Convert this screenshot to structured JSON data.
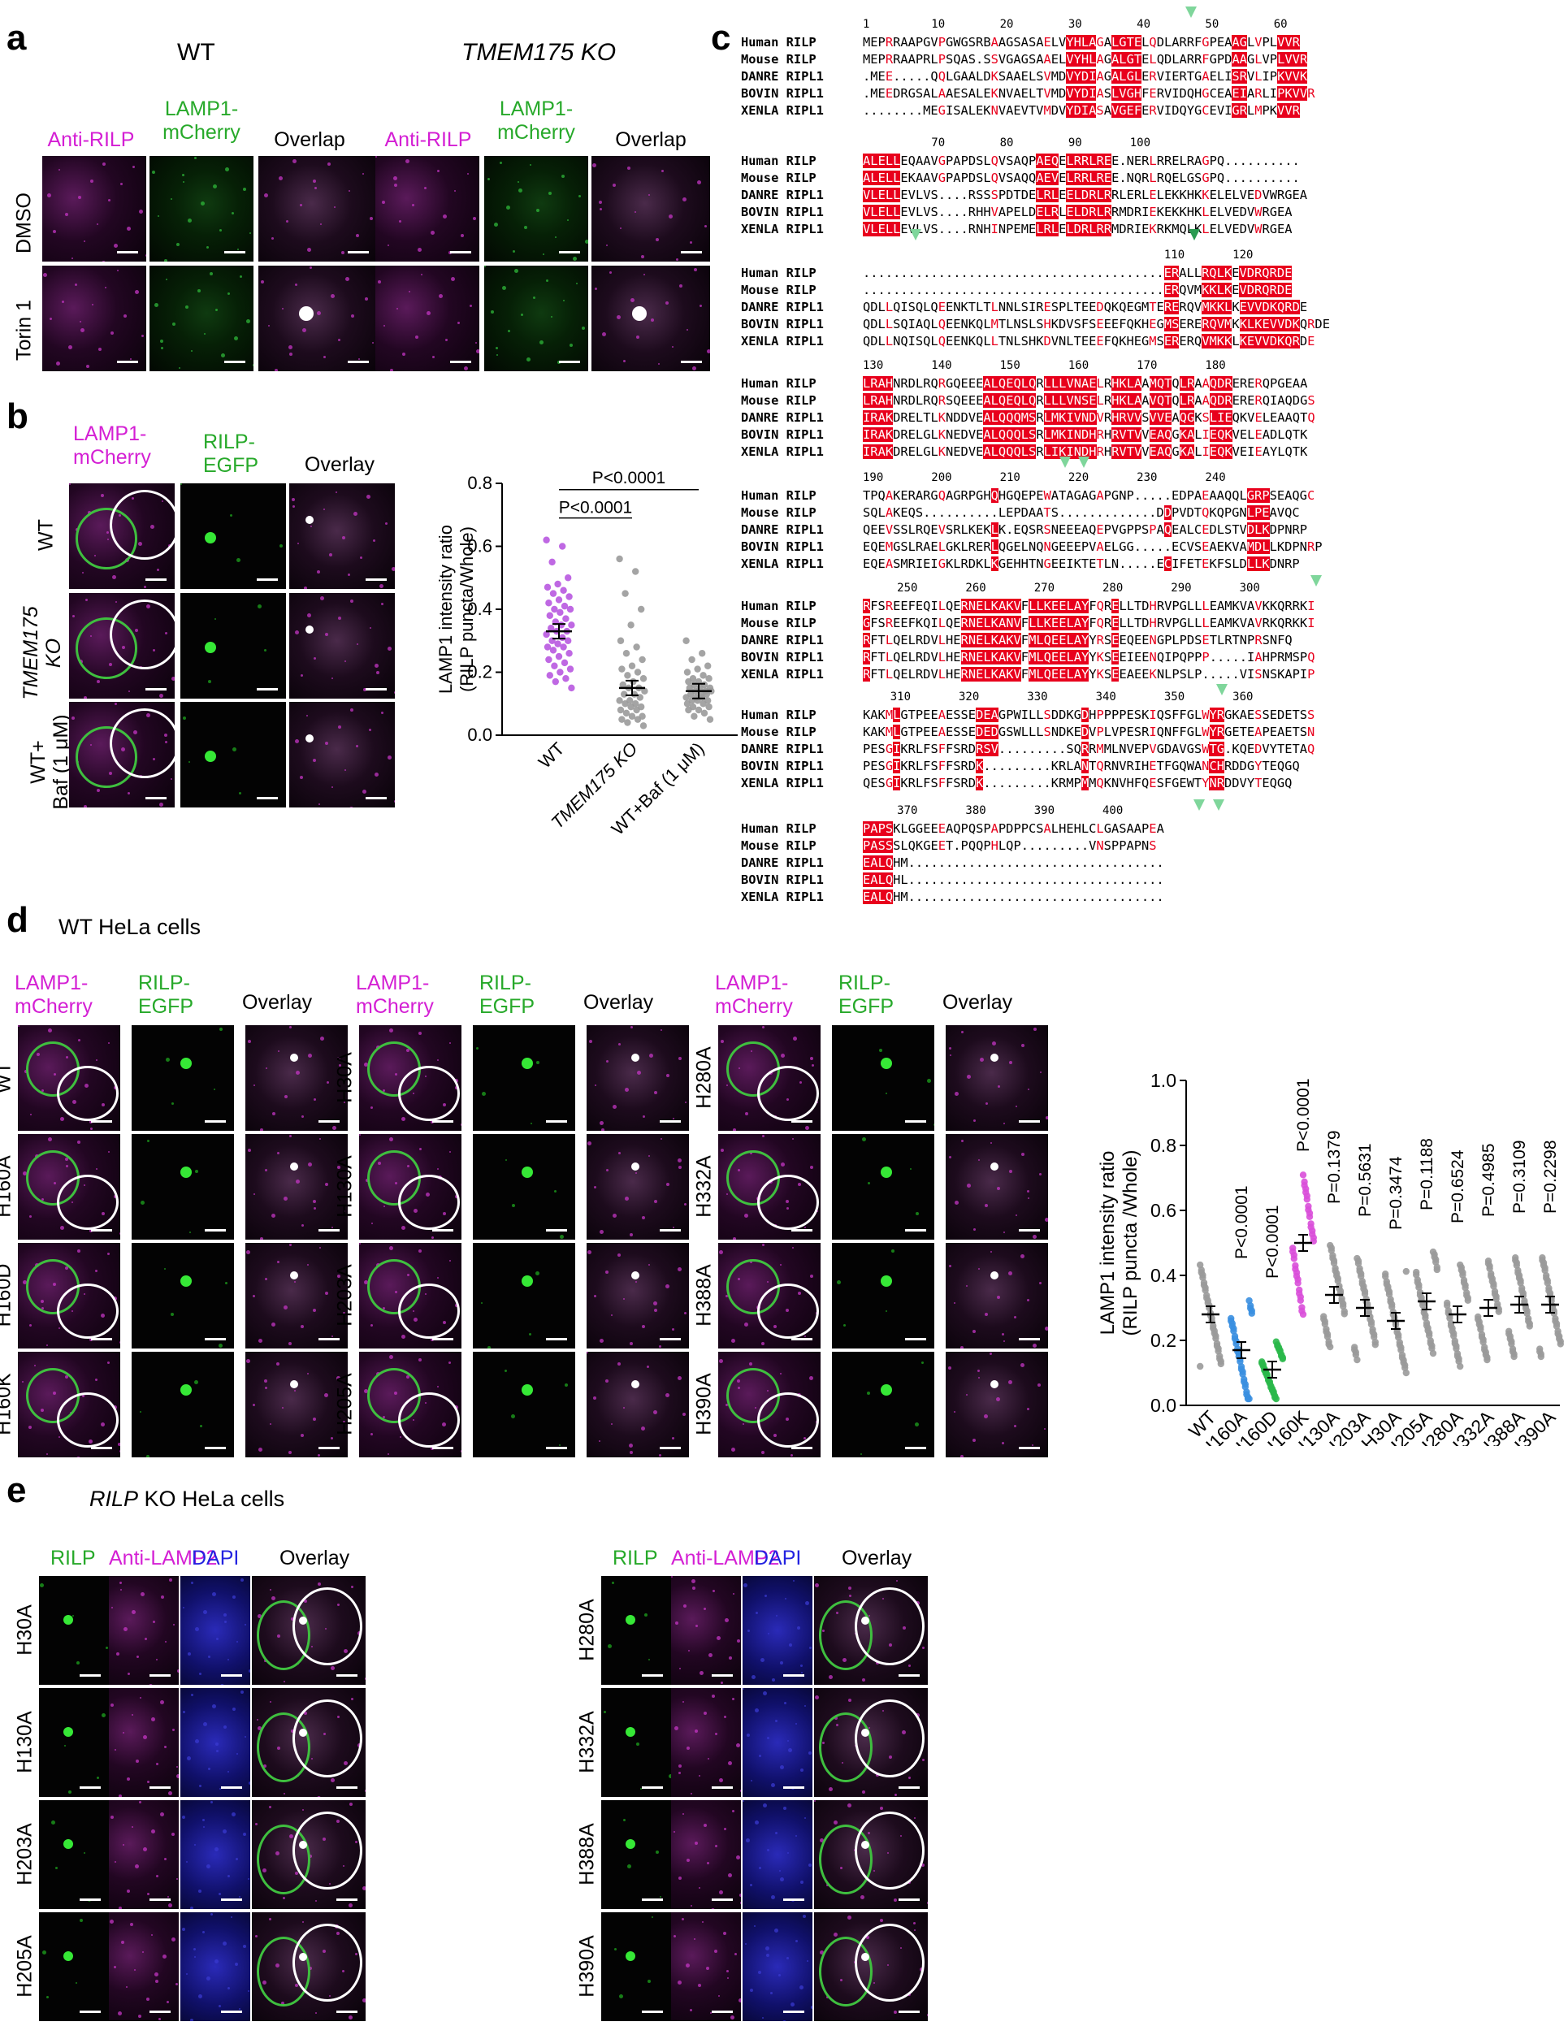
{
  "panel_a": {
    "label": "a",
    "groups": [
      "WT",
      "TMEM175 KO"
    ],
    "columns": [
      "Anti-RILP",
      "LAMP1-\nmCherry",
      "Overlap"
    ],
    "rows": [
      "DMSO",
      "Torin 1"
    ]
  },
  "panel_b": {
    "label": "b",
    "columns": [
      "LAMP1-\nmCherry",
      "RILP-\nEGFP",
      "Overlay"
    ],
    "rows": [
      "WT",
      "TMEM175\nKO",
      "WT+\nBaf (1 μM)"
    ],
    "chart_data": {
      "type": "scatter",
      "ylabel": "LAMP1  intensity ratio\n(RILP puncta/Whole)",
      "categories": [
        "WT",
        "TMEM175 KO",
        "WT+Baf (1 μM)"
      ],
      "ylim": [
        0.0,
        0.8
      ],
      "yticks": [
        "0.0",
        "0.2",
        "0.4",
        "0.6",
        "0.8"
      ],
      "means": [
        0.33,
        0.15,
        0.14
      ],
      "colors": [
        "#b858e0",
        "#9a9a9a",
        "#9a9a9a"
      ],
      "annotations": [
        "P<0.0001",
        "P<0.0001"
      ],
      "series": [
        {
          "values": [
            0.62,
            0.6,
            0.55,
            0.5,
            0.48,
            0.47,
            0.46,
            0.45,
            0.44,
            0.43,
            0.42,
            0.41,
            0.4,
            0.4,
            0.39,
            0.38,
            0.37,
            0.36,
            0.35,
            0.35,
            0.34,
            0.33,
            0.33,
            0.32,
            0.31,
            0.3,
            0.3,
            0.29,
            0.28,
            0.28,
            0.27,
            0.26,
            0.25,
            0.24,
            0.23,
            0.22,
            0.21,
            0.2,
            0.19,
            0.18,
            0.17,
            0.15
          ]
        },
        {
          "values": [
            0.56,
            0.52,
            0.45,
            0.4,
            0.35,
            0.3,
            0.28,
            0.26,
            0.24,
            0.22,
            0.21,
            0.2,
            0.19,
            0.18,
            0.17,
            0.16,
            0.15,
            0.15,
            0.14,
            0.13,
            0.13,
            0.12,
            0.11,
            0.11,
            0.1,
            0.1,
            0.09,
            0.09,
            0.08,
            0.08,
            0.07,
            0.06,
            0.06,
            0.05,
            0.05,
            0.04,
            0.03
          ]
        },
        {
          "values": [
            0.3,
            0.26,
            0.24,
            0.22,
            0.21,
            0.2,
            0.19,
            0.18,
            0.18,
            0.17,
            0.17,
            0.16,
            0.16,
            0.15,
            0.15,
            0.15,
            0.14,
            0.14,
            0.14,
            0.13,
            0.13,
            0.13,
            0.12,
            0.12,
            0.12,
            0.11,
            0.11,
            0.11,
            0.1,
            0.1,
            0.09,
            0.09,
            0.08,
            0.08,
            0.07,
            0.06,
            0.05
          ]
        }
      ]
    }
  },
  "panel_c": {
    "label": "c",
    "blocks": [
      {
        "nums": "1         10        20        30        40        50        60",
        "rows": [
          [
            "Human RILP",
            "MEPRRAAPGVPGWGSRBAAGSASAELVYHLAGALGTELQDLARRFGPEAAGLVPLVVR"
          ],
          [
            "Mouse RILP",
            "MEPRRAAPRLPSQAS.SSVGAGSAAELVYHLAGALGTELQDLARRFGPDAAGLVPLVVR"
          ],
          [
            "DANRE RIPL1",
            ".MEE.....QQLGAALDKSAAELSVMDVYDIAGALGLERVIERTGAELISRVLIPKVVK"
          ],
          [
            "BOVIN RIPL1",
            ".MEEDRGSALAAESALEKNVAELTVMDVYDIASLVGHFERVIDQHGCEAEIARLIPKVVR"
          ],
          [
            "XENLA RIPL1",
            "........MEGISALEKNVAEVTVMDVYDIASAVGEFERVIDQYGCEVIGRLMPKVVR"
          ]
        ]
      },
      {
        "nums": "          70        80        90       100",
        "rows": [
          [
            "Human RILP",
            "ALELLEQAAVGPAPDSLQVSAQPAEQELRRLREE.NERLRRELRAGPQ.........."
          ],
          [
            "Mouse RILP",
            "ALELLEKAAVGPAPDSLQVSAQQAEVELRRLREE.NQRLRQELGSGPQ.........."
          ],
          [
            "DANRE RIPL1",
            "VLELLEVLVS....RSSSPDTDELRLEELDRLRRLERLELEKKHKKELELVEDVWRGEA"
          ],
          [
            "BOVIN RIPL1",
            "VLELLEVLVS....RHHVAPELDELRLELDRLRRMDRIEKEKKHKLELVEDVWRGEA"
          ],
          [
            "XENLA RIPL1",
            "VLELLEVLVS....RNHINPEMELRLELDRLRRMDRIEKRKMQLKLELVEDVWRGEA"
          ]
        ]
      },
      {
        "nums": "                                            110       120",
        "rows": [
          [
            "Human RILP",
            "........................................ERALLRQLKEVDRQRDE"
          ],
          [
            "Mouse RILP",
            "........................................ERQVMKKLKEVDRQRDE"
          ],
          [
            "DANRE RIPL1",
            "QDLLQISQLQEENKTLTLNNLSIRESPLTEEDQKQEGMTERERQVMKKLKEVVDKQRDE"
          ],
          [
            "BOVIN RIPL1",
            "QDLLSQIAQLQEENKQLMTLNSLSHKDVSFSEEEFQKHEGMSERERQVMKKLKEVVDKQRDE"
          ],
          [
            "XENLA RIPL1",
            "QDLLNQISQLQEENKQLLTNLSHKDVNLTEEEFQKHEGMSERERQVMKKLKEVVDKQRDE"
          ]
        ]
      },
      {
        "nums": "130       140       150       160       170       180",
        "rows": [
          [
            "Human RILP",
            "LRAHNRDLRQRGQEEEALQEQLQRLLLVNAELRHKLAAMQTQLRAAQDRERERQPGEAA"
          ],
          [
            "Mouse RILP",
            "LRAHNRDLRQRSQEEEALQEQLQRLLLVNSELRHKLAAVQTQLRAAQDRERERQIAQDGS"
          ],
          [
            "DANRE RIPL1",
            "IRAKDRELTLKNDDVEALQQQMSRLMKIVNDVRHRVVSVVEAQGKSLIEQKVELEAAQTQ"
          ],
          [
            "BOVIN RIPL1",
            "IRAKDRELGLKNEDVEALQQQLSRLMKINDHRHRVTVVEAQGKALIEQKVELEADLQTK"
          ],
          [
            "XENLA RIPL1",
            "IRAKDRELGLKNEDVEALQQQLSRLIKINDHRHRVTVVEAQGKALIEQKVEIEAYLQTK"
          ]
        ]
      },
      {
        "nums": "190       200       210       220       230       240",
        "rows": [
          [
            "Human RILP",
            "TPQAKERARGQAGRPGHQHGQEPEWATAGAGAPGNP.....EDPAEAAQQLGRPSEAQGC"
          ],
          [
            "Mouse RILP",
            "SQLAKEQS..........LEPDAATS.............DDPVDTQKQPGNLPEAVQC"
          ],
          [
            "DANRE RIPL1",
            "QEEVSSLRQEVSRLKEKLK.EQSRSNEEEAQEPVGPPSPAQEALCEDLSTVDLKDPNRP"
          ],
          [
            "BOVIN RIPL1",
            "EQEMGSLRAELGKLRERLQGELNQNGEEEPVAELGG.....ECVSEAEKVAMDLLKDPNRP"
          ],
          [
            "XENLA RIPL1",
            "EQEASMRIEIGKLRDKLKGEHHTNGEEIKTETLN.....ECIFETEKFSLDLLKDNRP"
          ]
        ]
      },
      {
        "nums": "     250       260       270       280       290       300",
        "rows": [
          [
            "Human RILP",
            "RFSREEFEQILQERNELKAKVFLLKEELAYFQRELLTDHRVPGLLLEAMKVAVKKQRRKI"
          ],
          [
            "Mouse RILP",
            "GFSREEFKQILQERNELKANVFLLKEELAYFQRELLTDHRVPGLLLEAMKVAVRKQRKKI"
          ],
          [
            "DANRE RIPL1",
            "RFTLQELRDVLHERNELKAKVFMLQEELAYYRSEEQEENGPLPDSETLRTNPRSNFQ"
          ],
          [
            "BOVIN RIPL1",
            "RFTLQELRDVLHERNELKAKVFMLQEELAYYKSEEIEENQIPQPPP.....IAHPRMSPQ"
          ],
          [
            "XENLA RIPL1",
            "RFTLQELRDVLHERNELKAKVFMLQEELAYYKSEEAEEKNLPSLP.....VISNSKAPIP"
          ]
        ]
      },
      {
        "nums": "    310       320       330       340       350       360",
        "rows": [
          [
            "Human RILP",
            "KAKMLGTPEEAESSEDEAGPWILLSDDKGDHPPPPESKIQSFFGLWYRGKAESSEDETSS"
          ],
          [
            "Mouse RILP",
            "KAKMLGTPEEAESSEDEDGSWLLLSNDKEDVPLVPESRIQNFFGLWYRGETEAPEAETSN"
          ],
          [
            "DANRE RIPL1",
            "PESGIKRLFSFFSRDRSV.........SQRRMMLNVEPVGDAVGSWTG.KQEDVYTETAQ"
          ],
          [
            "BOVIN RIPL1",
            "PESGIKRLFSFFSRDK.........KRLANTQRNVRIHETFGQWANCHRDDGYTEQGQ"
          ],
          [
            "XENLA RIPL1",
            "QESGIKRLFSFFSRDK.........KRMPMMQKNVHFQESFGEWTYNRDDVYTEQGQ"
          ]
        ]
      },
      {
        "nums": "     370       380       390       400",
        "rows": [
          [
            "Human RILP",
            "PAPSKLGGEEEAQPQSPAPDPPCSALHEHLCLGASAAPEA"
          ],
          [
            "Mouse RILP",
            "PASSSLQKGEET.PQQPHLQP.........VNSPPAPNS"
          ],
          [
            "DANRE RIPL1",
            "EALQHM.................................."
          ],
          [
            "BOVIN RIPL1",
            "EALQHL.................................."
          ],
          [
            "XENLA RIPL1",
            "EALQHM.................................."
          ]
        ]
      }
    ]
  },
  "panel_d": {
    "label": "d",
    "title": "WT HeLa cells",
    "columns": [
      "LAMP1-\nmCherry",
      "RILP-\nEGFP",
      "Overlay"
    ],
    "rows_1": [
      "WT",
      "H160A",
      "H160D",
      "H160K"
    ],
    "rows_2": [
      "H30A",
      "H130A",
      "H203A",
      "H205A"
    ],
    "rows_3": [
      "H280A",
      "H332A",
      "H388A",
      "H390A"
    ],
    "chart_data": {
      "type": "scatter",
      "ylabel": "LAMP1 intensity ratio\n(RILP puncta /Whole)",
      "categories": [
        "WT",
        "H160A",
        "H160D",
        "H160K",
        "H130A",
        "H203A",
        "H30A",
        "H205A",
        "H280A",
        "H332A",
        "H388A",
        "H390A"
      ],
      "ylim": [
        0.0,
        1.0
      ],
      "yticks": [
        "0.0",
        "0.2",
        "0.4",
        "0.6",
        "0.8",
        "1.0"
      ],
      "means": [
        0.28,
        0.17,
        0.11,
        0.5,
        0.34,
        0.3,
        0.26,
        0.32,
        0.28,
        0.3,
        0.31,
        0.31
      ],
      "colors": [
        "#9a9a9a",
        "#3a8fe0",
        "#2ab84a",
        "#d94fd9",
        "#9a9a9a",
        "#9a9a9a",
        "#9a9a9a",
        "#9a9a9a",
        "#9a9a9a",
        "#9a9a9a",
        "#9a9a9a",
        "#9a9a9a"
      ],
      "pvalues": [
        "",
        "P<0.0001",
        "P<0.0001",
        "P<0.0001",
        "P=0.1379",
        "P=0.5631",
        "P=0.3474",
        "P=0.1188",
        "P=0.6524",
        "P=0.4985",
        "P=0.3109",
        "P=0.2298"
      ]
    }
  },
  "panel_e": {
    "label": "e",
    "title_italic": "RILP",
    "title_rest": " KO HeLa cells",
    "columns": [
      "RILP",
      "Anti-LAMP2",
      "DAPI",
      "Overlay"
    ],
    "rows_1": [
      "H30A",
      "H130A",
      "H203A",
      "H205A"
    ],
    "rows_2": [
      "H280A",
      "H332A",
      "H388A",
      "H390A"
    ]
  },
  "colors": {
    "magenta": "#d41fd4",
    "green": "#27a92a",
    "blue": "#2323e0",
    "red": "#e8001c",
    "box": "#3a3ad8",
    "triangle": "#7fd69b"
  }
}
